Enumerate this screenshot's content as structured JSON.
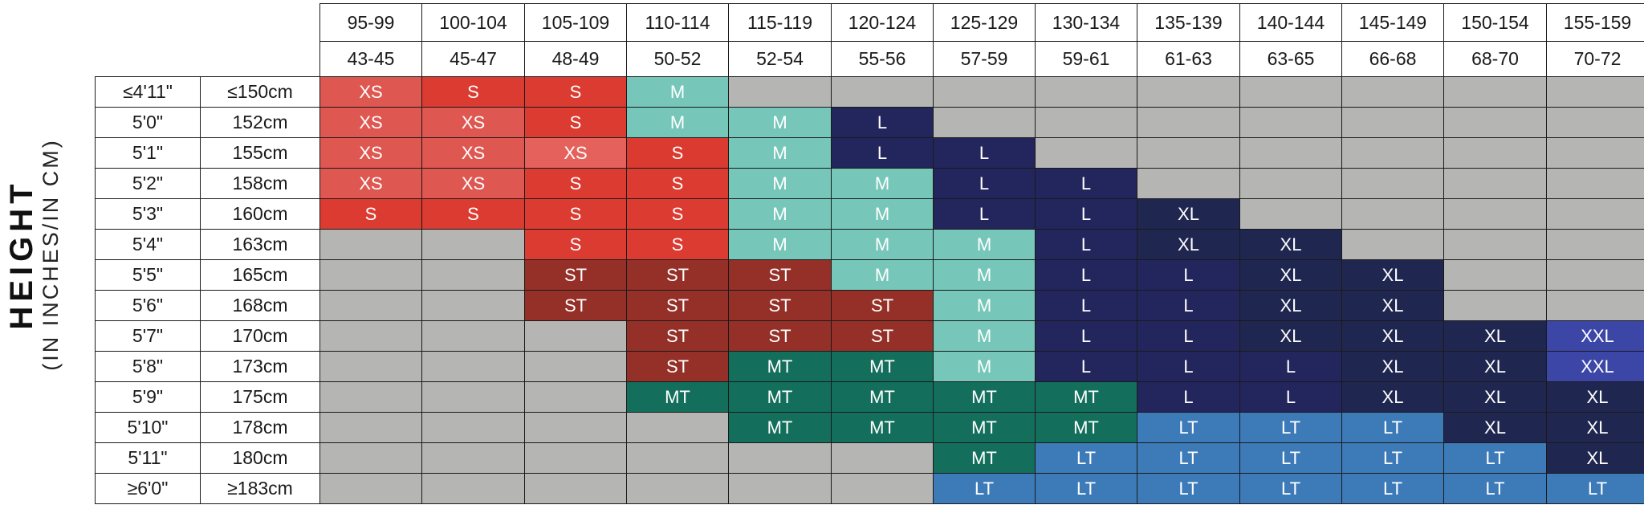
{
  "axis_title": {
    "main": "HEIGHT",
    "sub": "(IN INCHES/IN CM)"
  },
  "chart_data": {
    "type": "table",
    "columns_lbs": [
      "95-99",
      "100-104",
      "105-109",
      "110-114",
      "115-119",
      "120-124",
      "125-129",
      "130-134",
      "135-139",
      "140-144",
      "145-149",
      "150-154",
      "155-159"
    ],
    "columns_kg": [
      "43-45",
      "45-47",
      "48-49",
      "50-52",
      "52-54",
      "55-56",
      "57-59",
      "59-61",
      "61-63",
      "63-65",
      "66-68",
      "68-70",
      "70-72"
    ],
    "rows_in": [
      "≤4'11\"",
      "5'0\"",
      "5'1\"",
      "5'2\"",
      "5'3\"",
      "5'4\"",
      "5'5\"",
      "5'6\"",
      "5'7\"",
      "5'8\"",
      "5'9\"",
      "5'10\"",
      "5'11\"",
      "≥6'0\""
    ],
    "rows_cm": [
      "≤150cm",
      "152cm",
      "155cm",
      "158cm",
      "160cm",
      "163cm",
      "165cm",
      "168cm",
      "170cm",
      "173cm",
      "175cm",
      "178cm",
      "180cm",
      "≥183cm"
    ],
    "sizes": [
      [
        "XS",
        "S",
        "S",
        "M",
        "",
        "",
        "",
        "",
        "",
        "",
        "",
        "",
        ""
      ],
      [
        "XS",
        "XS",
        "S",
        "M",
        "M",
        "L",
        "",
        "",
        "",
        "",
        "",
        "",
        ""
      ],
      [
        "XS",
        "XS",
        "XS",
        "S",
        "M",
        "L",
        "L",
        "",
        "",
        "",
        "",
        "",
        ""
      ],
      [
        "XS",
        "XS",
        "S",
        "S",
        "M",
        "M",
        "L",
        "L",
        "",
        "",
        "",
        "",
        ""
      ],
      [
        "S",
        "S",
        "S",
        "S",
        "M",
        "M",
        "L",
        "L",
        "XL",
        "",
        "",
        "",
        ""
      ],
      [
        "",
        "",
        "S",
        "S",
        "M",
        "M",
        "M",
        "L",
        "XL",
        "XL",
        "",
        "",
        ""
      ],
      [
        "",
        "",
        "ST",
        "ST",
        "ST",
        "M",
        "M",
        "L",
        "L",
        "XL",
        "XL",
        "",
        ""
      ],
      [
        "",
        "",
        "ST",
        "ST",
        "ST",
        "ST",
        "M",
        "L",
        "L",
        "XL",
        "XL",
        "",
        ""
      ],
      [
        "",
        "",
        "",
        "ST",
        "ST",
        "ST",
        "M",
        "L",
        "L",
        "XL",
        "XL",
        "XL",
        "XXL"
      ],
      [
        "",
        "",
        "",
        "ST",
        "MT",
        "MT",
        "M",
        "L",
        "L",
        "L",
        "XL",
        "XL",
        "XXL"
      ],
      [
        "",
        "",
        "",
        "MT",
        "MT",
        "MT",
        "MT",
        "MT",
        "L",
        "L",
        "XL",
        "XL",
        "XL"
      ],
      [
        "",
        "",
        "",
        "",
        "MT",
        "MT",
        "MT",
        "MT",
        "LT",
        "LT",
        "LT",
        "XL",
        "XL"
      ],
      [
        "",
        "",
        "",
        "",
        "",
        "",
        "MT",
        "LT",
        "LT",
        "LT",
        "LT",
        "LT",
        "XL"
      ],
      [
        "",
        "",
        "",
        "",
        "",
        "",
        "LT",
        "LT",
        "LT",
        "LT",
        "LT",
        "LT",
        "LT"
      ]
    ],
    "colors": {
      "XS": "#de5750",
      "S": "#db3b30",
      "M": "#76c6b9",
      "L": "#23255d",
      "XL": "#1f2650",
      "XXL": "#3b46a6",
      "ST": "#943028",
      "MT": "#136f5b",
      "LT": "#3d7ab8",
      "empty": "#b5b5b3"
    },
    "color_overrides": [
      {
        "row": 2,
        "col": 2,
        "color": "#e4625b"
      },
      {
        "row": 2,
        "col": 3,
        "color": "#da3a2f"
      },
      {
        "row": 0,
        "col": 1,
        "color": "#db3b30"
      },
      {
        "row": 4,
        "col": 0,
        "color": "#db3b30"
      }
    ]
  }
}
